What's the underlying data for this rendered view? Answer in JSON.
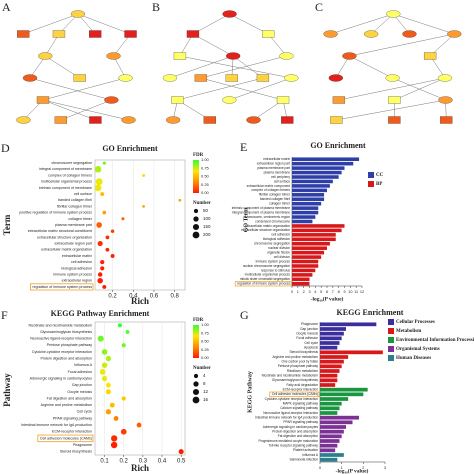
{
  "panels_top": [
    "A",
    "B",
    "C"
  ],
  "chart_data": [
    {
      "type": "dot",
      "panel": "D",
      "title": "GO Enrichment",
      "xlabel": "Rich",
      "ylabel": "Term",
      "categories": [
        "chromosome segregation",
        "integral component of membrane",
        "complex of collagen trimers",
        "multicellular organismal process",
        "intrinsic component of membrane",
        "cell surface",
        "banded collagen fibril",
        "fibrillar collagen trimer",
        "positive regulation of immune system process",
        "collagen trimer",
        "plasma membrane part",
        "extracellular matrix structural constituent",
        "extracellular structure organization",
        "extracellular region part",
        "extracellular matrix organization",
        "extracellular matrix",
        "cell adhesion",
        "biological adhesion",
        "immune system process",
        "extracellular region",
        "regulation of immune system process"
      ],
      "values": [
        0.12,
        0.06,
        0.5,
        0.07,
        0.06,
        0.1,
        0.85,
        0.5,
        0.12,
        0.3,
        0.07,
        0.2,
        0.15,
        0.08,
        0.15,
        0.2,
        0.1,
        0.1,
        0.08,
        0.08,
        0.12
      ],
      "number": [
        20,
        180,
        10,
        200,
        190,
        40,
        8,
        9,
        30,
        15,
        120,
        25,
        35,
        90,
        35,
        40,
        50,
        50,
        60,
        110,
        40
      ],
      "fdr": [
        0.9,
        0.8,
        0.6,
        0.7,
        0.7,
        0.5,
        0.4,
        0.4,
        0.4,
        0.2,
        0.2,
        0.1,
        0.05,
        0.05,
        0.03,
        0.02,
        0.02,
        0.02,
        0.01,
        0.0,
        0.0
      ],
      "highlight": 20,
      "xlim": [
        0.03,
        0.9
      ],
      "xticks": [
        0.2,
        0.4,
        0.6,
        0.8
      ],
      "grid": true,
      "color_title": "FDR",
      "colorscale": [
        "#ff1a00",
        "#ff8c00",
        "#ffe600",
        "#33ff33"
      ],
      "color_ticks": [
        {
          "value": 1,
          "label": "1.00"
        },
        {
          "value": 0.75,
          "label": "0.75"
        },
        {
          "value": 0.5,
          "label": "0.50"
        },
        {
          "value": 0.25,
          "label": "0.25"
        },
        {
          "value": 0,
          "label": "0.00"
        }
      ],
      "size_title": "Number",
      "size_legend": [
        50,
        100,
        150,
        200
      ]
    },
    {
      "type": "barh",
      "panel": "E",
      "title": "GO Enrichment",
      "xlabel": "-log₁₀(P value)",
      "ylabel": "GO Term",
      "series": [
        {
          "name": "CC",
          "color": "#2e3fa8",
          "categories": [
            "extracellular matrix",
            "extracellular region part",
            "plasma membrane part",
            "plasma membrane",
            "cell periphery",
            "cell surface",
            "extracellular matrix component",
            "complex of collagen trimers",
            "fibrillar collagen trimer",
            "banded collagen fibril",
            "collagen trimer",
            "intrinsic component of plasma membrane",
            "integral component of plasma membrane",
            "chromosome, centromeric region",
            "condensed chromosome"
          ],
          "values": [
            11.5,
            10.5,
            9,
            8.5,
            8,
            7,
            6.5,
            6,
            5.5,
            5.5,
            5,
            4.5,
            4.5,
            4,
            3.5
          ]
        },
        {
          "name": "BP",
          "color": "#d7191c",
          "categories": [
            "extracellular matrix organization",
            "extracellular structure organization",
            "cell adhesion",
            "biological adhesion",
            "chromosome segregation",
            "nuclear division",
            "organelle fission",
            "cell division",
            "immune system process",
            "nuclear chromosome segregation",
            "response to stimulus",
            "multicellular organismal process",
            "mitotic sister chromatid segregation",
            "regulation of immune system process"
          ],
          "values": [
            9,
            8.5,
            7.5,
            7.5,
            6.5,
            6,
            5.5,
            5,
            4.5,
            4.5,
            4,
            3.5,
            3,
            3
          ]
        }
      ],
      "highlight": "regulation of immune system process",
      "xlim": [
        0,
        12
      ],
      "xticks": [
        0,
        1,
        2,
        3,
        4,
        5,
        6,
        7,
        8,
        9,
        10,
        11,
        12
      ],
      "legend": "right"
    },
    {
      "type": "dot",
      "panel": "F",
      "title": "KEGG Pathway Enrichment",
      "xlabel": "Rich",
      "ylabel": "Pathway",
      "categories": [
        "Nicotinate and nicotinamide metabolism",
        "Glycosaminoglycan biosynthesis",
        "Neuroactive ligand-receptor interaction",
        "Pentose phosphate pathway",
        "Cytokine-cytokine receptor interaction",
        "Protein digestion and absorption",
        "Influenza A",
        "Focal adhesion",
        "Adrenergic signaling in cardiomyocytes",
        "Gap junction",
        "Oocyte meiosis",
        "Fat digestion and absorption",
        "Arginine and proline metabolism",
        "Cell cycle",
        "PPAR signaling pathway",
        "Intestinal immune network for IgA production",
        "ECM-receptor interaction",
        "Cell adhesion molecules (CAMs)",
        "Phagosome",
        "Steroid biosynthesis"
      ],
      "values": [
        0.18,
        0.22,
        0.08,
        0.2,
        0.1,
        0.12,
        0.1,
        0.09,
        0.1,
        0.12,
        0.12,
        0.2,
        0.14,
        0.12,
        0.16,
        0.28,
        0.2,
        0.15,
        0.15,
        0.5
      ],
      "number": [
        4,
        3,
        12,
        4,
        10,
        8,
        9,
        10,
        8,
        6,
        7,
        4,
        6,
        8,
        6,
        6,
        10,
        13,
        14,
        7
      ],
      "fdr": [
        1,
        0.95,
        0.9,
        0.9,
        0.85,
        0.8,
        0.75,
        0.7,
        0.7,
        0.65,
        0.6,
        0.55,
        0.5,
        0.4,
        0.3,
        0.2,
        0.1,
        0.05,
        0.02,
        0.0
      ],
      "highlight": 17,
      "xlim": [
        0.05,
        0.52
      ],
      "xticks": [
        0.1,
        0.2,
        0.3,
        0.4,
        0.5
      ],
      "grid": true,
      "color_title": "FDR",
      "colorscale": [
        "#ff1a00",
        "#ff8c00",
        "#ffe600",
        "#33ff33"
      ],
      "color_ticks": [
        {
          "value": 1,
          "label": "1.00"
        },
        {
          "value": 0.75,
          "label": "0.75"
        },
        {
          "value": 0.5,
          "label": "0.50"
        },
        {
          "value": 0.25,
          "label": "0.25"
        },
        {
          "value": 0,
          "label": "0.00"
        }
      ],
      "size_title": "Number",
      "size_legend": [
        4,
        8,
        12,
        16
      ]
    },
    {
      "type": "barh",
      "panel": "G",
      "title": "KEGG Enrichment",
      "xlabel": "-log₁₀(P value)",
      "ylabel": "KEGG Pathway",
      "series": [
        {
          "name": "Cellular Processes",
          "color": "#3b2fa0",
          "categories": [
            "Phagosome",
            "Gap junction",
            "Oocyte meiosis",
            "Focal adhesion",
            "Cell cycle",
            "Apoptosis"
          ],
          "values": [
            2.6,
            1.2,
            1.1,
            1.0,
            0.9,
            0.8
          ]
        },
        {
          "name": "Metabolism",
          "color": "#d7191c",
          "categories": [
            "Steroid biosynthesis",
            "Arginine and proline metabolism",
            "One carbon pool by folate",
            "Pentose phosphate pathway",
            "Riboflavin metabolism",
            "Nicotinate and nicotinamide metabolism",
            "Glycosaminoglycan biosynthesis",
            "Fatty acid degradation"
          ],
          "values": [
            2.9,
            1.3,
            1.1,
            1.0,
            0.9,
            0.8,
            0.8,
            0.7
          ]
        },
        {
          "name": "Environmental Information Processing",
          "color": "#1a9641",
          "categories": [
            "ECM-receptor interaction",
            "Cell adhesion molecules (CAMs)",
            "Cytokine-cytokine receptor interaction",
            "MAPK signaling pathway",
            "Calcium signaling pathway",
            "Neuroactive ligand-receptor interaction"
          ],
          "values": [
            2.2,
            2.0,
            1.3,
            1.0,
            0.9,
            0.8
          ]
        },
        {
          "name": "Organismal Systems",
          "color": "#7b3294",
          "categories": [
            "Intestinal immune network for IgA production",
            "PPAR signaling pathway",
            "Adrenergic signaling in cardiomyocytes",
            "Protein digestion and absorption",
            "Fat digestion and absorption",
            "Progesterone-mediated oocyte maturation",
            "Toll-like receptor signaling pathway",
            "Platelet activation"
          ],
          "values": [
            1.8,
            1.5,
            1.2,
            1.1,
            1.0,
            0.9,
            0.8,
            0.7
          ]
        },
        {
          "name": "Human Diseases",
          "color": "#2c7f8f",
          "categories": [
            "Influenza A",
            "Salmonella infection"
          ],
          "values": [
            1.1,
            0.8
          ]
        }
      ],
      "highlight": "Cell adhesion molecules (CAMs)",
      "xlim": [
        0,
        3
      ],
      "xticks": [
        0,
        1,
        2,
        3
      ],
      "legend": "right"
    }
  ]
}
